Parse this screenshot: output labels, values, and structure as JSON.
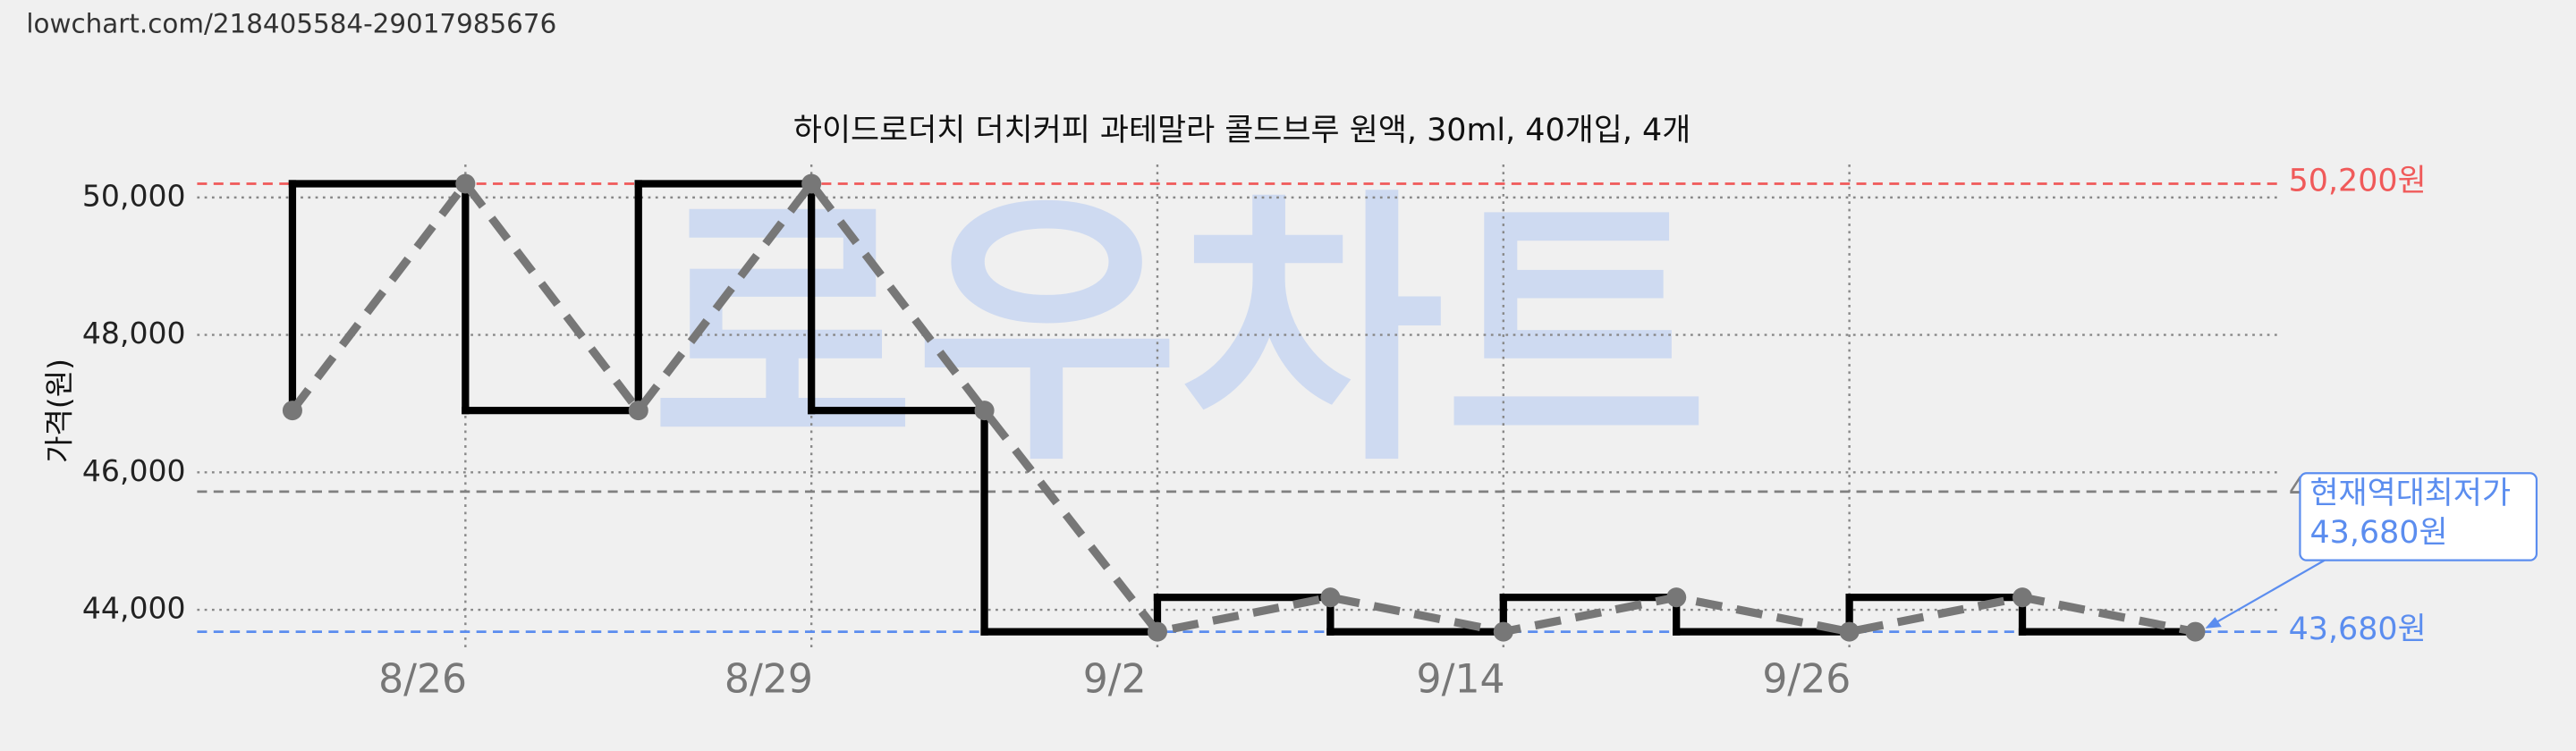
{
  "url": "lowchart.com/218405584-29017985676",
  "chart_data": {
    "type": "line",
    "title": "하이드로더치 더치커피 과테말라 콜드브루 원액, 30ml, 40개입, 4개",
    "y_label": "가격(원)",
    "watermark": "로우차트",
    "categories": [
      null,
      "8/26",
      null,
      "8/29",
      null,
      "9/2",
      null,
      "9/14",
      null,
      "9/26",
      null,
      null
    ],
    "series": [
      {
        "color": "#777777",
        "step_color": "#000000",
        "values": [
          46900,
          50200,
          46900,
          50200,
          46900,
          43680,
          44180,
          43680,
          44180,
          43680,
          44180,
          43680
        ]
      }
    ],
    "ylim": [
      43430,
      50480
    ],
    "yticks": [
      {
        "value": 44000,
        "label": "44,000"
      },
      {
        "value": 46000,
        "label": "46,000"
      },
      {
        "value": 48000,
        "label": "48,000"
      },
      {
        "value": 50000,
        "label": "50,000"
      }
    ],
    "grid": true,
    "reference_lines": [
      {
        "value": 50200,
        "label": "50,200원",
        "color": "#f05a5a"
      },
      {
        "value": 45720,
        "label": "4",
        "color": "#808080"
      },
      {
        "value": 43680,
        "label": "43,680원",
        "color": "#5b8def"
      }
    ],
    "annotation": {
      "lines": [
        "현재역대최저가",
        "43,680원"
      ],
      "color": "#5b8def"
    }
  }
}
